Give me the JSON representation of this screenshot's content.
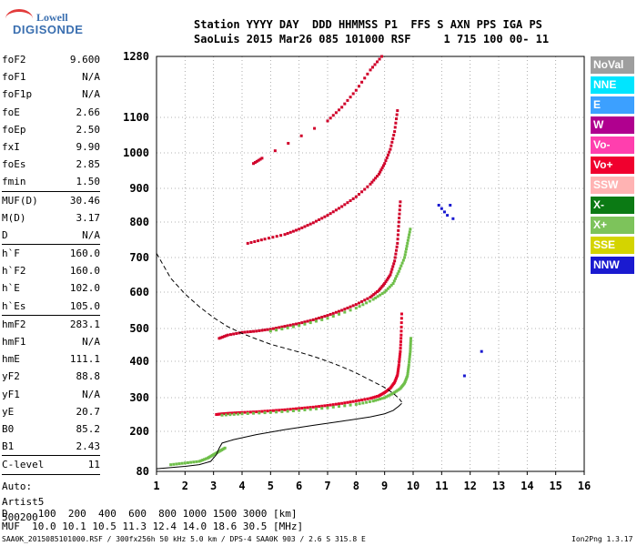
{
  "logo": {
    "line1": "Lowell",
    "line2": "DIGISONDE"
  },
  "header": {
    "line1": "Station YYYY DAY  DDD HHMMSS P1  FFS S AXN PPS IGA PS",
    "line2": "SaoLuis 2015 Mar26 085 101000 RSF     1 715 100 00- 11"
  },
  "params": [
    {
      "k": "foF2",
      "v": "9.600"
    },
    {
      "k": "foF1",
      "v": "N/A"
    },
    {
      "k": "foF1p",
      "v": "N/A"
    },
    {
      "k": "foE",
      "v": "2.66"
    },
    {
      "k": "foEp",
      "v": "2.50"
    },
    {
      "k": "fxI",
      "v": "9.90"
    },
    {
      "k": "foEs",
      "v": "2.85"
    },
    {
      "k": "fmin",
      "v": "1.50"
    },
    {
      "k": "MUF(D)",
      "v": "30.46",
      "sep": true
    },
    {
      "k": "M(D)",
      "v": "3.17"
    },
    {
      "k": "D",
      "v": "N/A"
    },
    {
      "k": "h`F",
      "v": "160.0",
      "sep": true
    },
    {
      "k": "h`F2",
      "v": "160.0"
    },
    {
      "k": "h`E",
      "v": "102.0"
    },
    {
      "k": "h`Es",
      "v": "105.0"
    },
    {
      "k": "hmF2",
      "v": "283.1",
      "sep": true
    },
    {
      "k": "hmF1",
      "v": "N/A"
    },
    {
      "k": "hmE",
      "v": "111.1"
    },
    {
      "k": "yF2",
      "v": "88.8"
    },
    {
      "k": "yF1",
      "v": "N/A"
    },
    {
      "k": "yE",
      "v": "20.7"
    },
    {
      "k": "B0",
      "v": "85.2"
    },
    {
      "k": "B1",
      "v": "2.43"
    },
    {
      "k": "C-level",
      "v": "11",
      "sep": true
    }
  ],
  "auto": {
    "line1": "Auto:",
    "line2": "Artist5",
    "line3": "500200"
  },
  "legend": [
    {
      "label": "NoVal",
      "color": "#9e9e9e"
    },
    {
      "label": "NNE",
      "color": "#00e5ff"
    },
    {
      "label": "E",
      "color": "#3ca0ff"
    },
    {
      "label": "W",
      "color": "#b0008f"
    },
    {
      "label": "Vo-",
      "color": "#ff3fae"
    },
    {
      "label": "Vo+",
      "color": "#f0002e"
    },
    {
      "label": "SSW",
      "color": "#ffb3b3"
    },
    {
      "label": "X-",
      "color": "#0b7a14"
    },
    {
      "label": "X+",
      "color": "#7dc35b"
    },
    {
      "label": "SSE",
      "color": "#d4d400"
    },
    {
      "label": "NNW",
      "color": "#1a1ad0"
    }
  ],
  "footer": {
    "d_line": "D     100  200  400  600  800 1000 1500 3000 [km]",
    "muf_line": "MUF  10.0 10.1 10.5 11.3 12.4 14.0 18.6 30.5 [MHz]",
    "file_line": "SAA0K_2015085101000.RSF / 300fx256h 50 kHz 5.0 km / DPS-4 SAA0K 903 / 2.6 S 315.8 E",
    "version": "Ion2Png 1.3.17"
  },
  "chart_data": {
    "type": "scatter",
    "xlim": [
      1,
      16
    ],
    "ylim": [
      80,
      1280
    ],
    "xticks": [
      1,
      2,
      3,
      4,
      5,
      6,
      7,
      8,
      9,
      10,
      11,
      12,
      13,
      14,
      15,
      16
    ],
    "yticks": [
      80,
      200,
      300,
      400,
      500,
      600,
      700,
      800,
      900,
      1000,
      1100,
      1280
    ],
    "grid": true,
    "series": [
      {
        "role": "o-trace-F",
        "color": "#e0002a",
        "points": [
          [
            3.1,
            250
          ],
          [
            3.3,
            252
          ],
          [
            3.6,
            254
          ],
          [
            4.0,
            256
          ],
          [
            4.5,
            258
          ],
          [
            5.0,
            261
          ],
          [
            5.5,
            264
          ],
          [
            6.0,
            268
          ],
          [
            6.5,
            272
          ],
          [
            7.0,
            277
          ],
          [
            7.5,
            283
          ],
          [
            8.0,
            290
          ],
          [
            8.5,
            298
          ],
          [
            8.8,
            305
          ],
          [
            9.0,
            314
          ],
          [
            9.2,
            326
          ],
          [
            9.35,
            342
          ],
          [
            9.45,
            362
          ],
          [
            9.5,
            390
          ],
          [
            9.55,
            430
          ],
          [
            9.58,
            480
          ],
          [
            9.6,
            540
          ]
        ]
      },
      {
        "role": "x-trace-F",
        "color": "#6fbf4a",
        "points": [
          [
            3.3,
            248
          ],
          [
            4.0,
            252
          ],
          [
            5.0,
            256
          ],
          [
            6.0,
            262
          ],
          [
            7.0,
            270
          ],
          [
            8.0,
            280
          ],
          [
            8.6,
            290
          ],
          [
            9.0,
            300
          ],
          [
            9.3,
            312
          ],
          [
            9.55,
            325
          ],
          [
            9.7,
            340
          ],
          [
            9.8,
            360
          ],
          [
            9.85,
            390
          ],
          [
            9.9,
            430
          ],
          [
            9.92,
            470
          ]
        ]
      },
      {
        "role": "o-trace-F-2hop",
        "color": "#d0002a",
        "points": [
          [
            3.2,
            470
          ],
          [
            3.5,
            480
          ],
          [
            4.0,
            488
          ],
          [
            4.5,
            492
          ],
          [
            5.0,
            498
          ],
          [
            5.5,
            506
          ],
          [
            6.0,
            514
          ],
          [
            6.5,
            524
          ],
          [
            7.0,
            536
          ],
          [
            7.5,
            550
          ],
          [
            8.0,
            566
          ],
          [
            8.5,
            586
          ],
          [
            8.8,
            605
          ],
          [
            9.0,
            625
          ],
          [
            9.2,
            650
          ],
          [
            9.35,
            690
          ],
          [
            9.45,
            740
          ],
          [
            9.5,
            800
          ],
          [
            9.55,
            860
          ]
        ]
      },
      {
        "role": "x-trace-F-2hop",
        "color": "#6fbf4a",
        "points": [
          [
            5.0,
            492
          ],
          [
            6.0,
            508
          ],
          [
            7.0,
            528
          ],
          [
            8.0,
            556
          ],
          [
            8.6,
            580
          ],
          [
            9.0,
            600
          ],
          [
            9.3,
            625
          ],
          [
            9.5,
            660
          ],
          [
            9.7,
            700
          ],
          [
            9.8,
            740
          ],
          [
            9.9,
            780
          ]
        ]
      },
      {
        "role": "o-trace-F-3hop",
        "color": "#d0002a",
        "points": [
          [
            4.2,
            740
          ],
          [
            4.8,
            752
          ],
          [
            5.5,
            765
          ],
          [
            6.0,
            780
          ],
          [
            6.5,
            798
          ],
          [
            7.0,
            820
          ],
          [
            7.5,
            846
          ],
          [
            8.0,
            875
          ],
          [
            8.5,
            912
          ],
          [
            8.8,
            940
          ],
          [
            9.0,
            970
          ],
          [
            9.2,
            1010
          ],
          [
            9.35,
            1060
          ],
          [
            9.45,
            1120
          ]
        ]
      },
      {
        "role": "o-trace-F-4hop",
        "color": "#d0002a",
        "points": [
          [
            4.4,
            970
          ],
          [
            4.7,
            985
          ],
          [
            7.0,
            1090
          ],
          [
            7.5,
            1130
          ],
          [
            8.0,
            1180
          ],
          [
            8.5,
            1240
          ],
          [
            8.9,
            1280
          ]
        ]
      },
      {
        "role": "E-layer",
        "color": "#6fbf4a",
        "points": [
          [
            1.5,
            100
          ],
          [
            2.0,
            105
          ],
          [
            2.5,
            110
          ],
          [
            2.8,
            120
          ],
          [
            3.0,
            130
          ],
          [
            3.2,
            140
          ],
          [
            3.4,
            150
          ]
        ]
      },
      {
        "role": "scattered-returns",
        "color": "#1a1ad0",
        "points": [
          [
            11.0,
            840
          ],
          [
            11.1,
            830
          ],
          [
            11.2,
            820
          ],
          [
            11.3,
            850
          ],
          [
            11.4,
            810
          ],
          [
            10.9,
            850
          ],
          [
            12.4,
            430
          ],
          [
            11.8,
            360
          ]
        ]
      }
    ],
    "profile_line": {
      "points": [
        [
          1.0,
          88
        ],
        [
          2.0,
          95
        ],
        [
          2.5,
          100
        ],
        [
          2.9,
          110
        ],
        [
          3.1,
          130
        ],
        [
          3.2,
          150
        ],
        [
          3.3,
          165
        ],
        [
          3.7,
          175
        ],
        [
          4.5,
          190
        ],
        [
          5.5,
          205
        ],
        [
          6.5,
          218
        ],
        [
          7.5,
          230
        ],
        [
          8.5,
          243
        ],
        [
          9.0,
          252
        ],
        [
          9.3,
          262
        ],
        [
          9.5,
          275
        ],
        [
          9.6,
          283
        ]
      ]
    },
    "profile_dashed": {
      "points": [
        [
          1.0,
          712
        ],
        [
          1.5,
          640
        ],
        [
          2.0,
          595
        ],
        [
          2.5,
          560
        ],
        [
          3.0,
          530
        ],
        [
          3.5,
          505
        ],
        [
          4.0,
          485
        ],
        [
          4.5,
          468
        ],
        [
          5.0,
          452
        ],
        [
          5.5,
          440
        ],
        [
          6.0,
          428
        ],
        [
          6.5,
          415
        ],
        [
          7.0,
          400
        ],
        [
          7.5,
          385
        ],
        [
          8.0,
          368
        ],
        [
          8.5,
          348
        ],
        [
          9.0,
          328
        ],
        [
          9.3,
          312
        ],
        [
          9.5,
          298
        ],
        [
          9.6,
          287
        ]
      ]
    }
  }
}
